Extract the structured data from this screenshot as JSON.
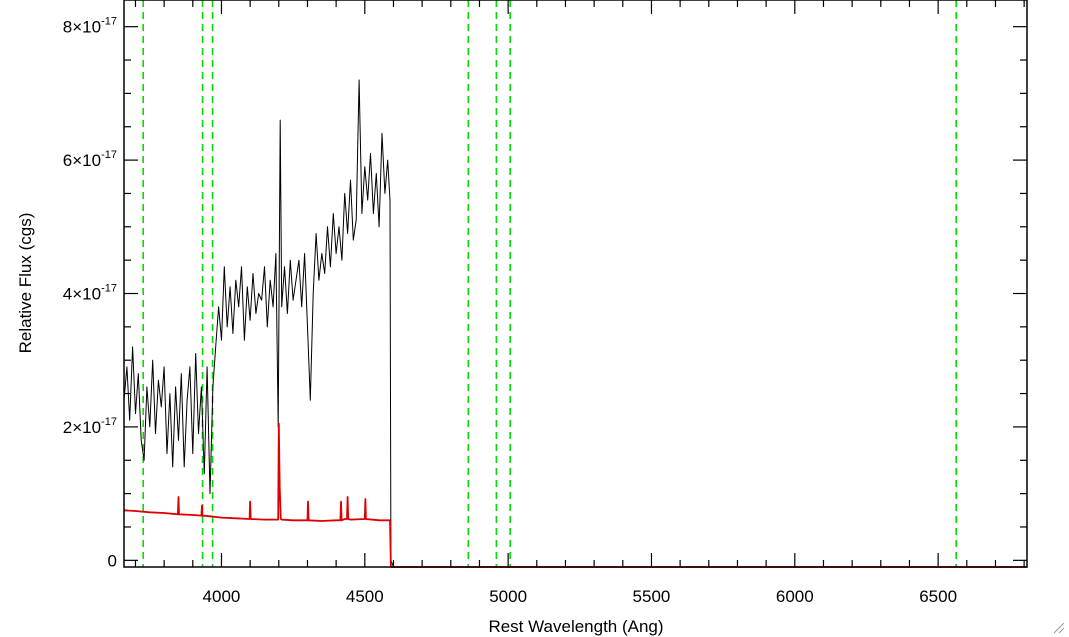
{
  "chart_data": {
    "type": "line",
    "title": "",
    "xlabel": "Rest Wavelength (Ang)",
    "ylabel": "Relative Flux (cgs)",
    "xlim": [
      3660,
      6810
    ],
    "ylim": [
      -1e-18,
      8.4e-17
    ],
    "x_ticks": [
      4000,
      4500,
      5000,
      5500,
      6000,
      6500
    ],
    "x_tick_labels": [
      "4000",
      "4500",
      "5000",
      "5500",
      "6000",
      "6500"
    ],
    "y_ticks": [
      0,
      2e-17,
      4e-17,
      6e-17,
      8e-17
    ],
    "y_tick_labels": [
      {
        "mantissa": "0",
        "exponent": ""
      },
      {
        "mantissa": "2×10",
        "exponent": "-17"
      },
      {
        "mantissa": "4×10",
        "exponent": "-17"
      },
      {
        "mantissa": "6×10",
        "exponent": "-17"
      },
      {
        "mantissa": "8×10",
        "exponent": "-17"
      }
    ],
    "reference_lines_x": [
      3727,
      3934,
      3969,
      4861,
      4959,
      5007,
      6563
    ],
    "reference_line_color": "#00dd00",
    "series": [
      {
        "color": "#000000",
        "x": [
          3660,
          3670,
          3680,
          3690,
          3700,
          3710,
          3720,
          3730,
          3740,
          3750,
          3760,
          3770,
          3780,
          3790,
          3800,
          3810,
          3820,
          3830,
          3840,
          3850,
          3860,
          3870,
          3880,
          3890,
          3900,
          3910,
          3920,
          3930,
          3940,
          3950,
          3960,
          3970,
          3980,
          3990,
          4000,
          4010,
          4020,
          4030,
          4040,
          4050,
          4060,
          4070,
          4080,
          4090,
          4100,
          4110,
          4120,
          4130,
          4140,
          4150,
          4160,
          4170,
          4180,
          4190,
          4198,
          4205,
          4210,
          4220,
          4230,
          4240,
          4250,
          4260,
          4270,
          4280,
          4290,
          4300,
          4310,
          4320,
          4330,
          4340,
          4350,
          4360,
          4370,
          4380,
          4390,
          4400,
          4410,
          4420,
          4430,
          4440,
          4450,
          4460,
          4470,
          4480,
          4490,
          4500,
          4510,
          4520,
          4530,
          4540,
          4550,
          4560,
          4570,
          4580,
          4588,
          4591,
          4600,
          6810
        ],
        "y": [
          2.4e-17,
          2.9e-17,
          2.1e-17,
          3.2e-17,
          2.2e-17,
          2.8e-17,
          1.8e-17,
          1.5e-17,
          2.6e-17,
          2e-17,
          3e-17,
          1.9e-17,
          2.7e-17,
          2.3e-17,
          2.9e-17,
          1.6e-17,
          2.5e-17,
          1.4e-17,
          2.6e-17,
          1.8e-17,
          2.8e-17,
          1.4e-17,
          2.4e-17,
          2.9e-17,
          1.6e-17,
          3.1e-17,
          1.9e-17,
          2.6e-17,
          1.3e-17,
          2.9e-17,
          1e-17,
          2.6e-17,
          3.2e-17,
          3.8e-17,
          3.3e-17,
          4.4e-17,
          3.5e-17,
          4.1e-17,
          3.4e-17,
          4.2e-17,
          3.8e-17,
          4.4e-17,
          3.3e-17,
          4.1e-17,
          3.6e-17,
          4.3e-17,
          3.7e-17,
          4e-17,
          3.9e-17,
          4.4e-17,
          3.5e-17,
          4.2e-17,
          3.8e-17,
          4.6e-17,
          2e-17,
          6.6e-17,
          3.8e-17,
          4.4e-17,
          3.7e-17,
          4.5e-17,
          3.9e-17,
          4.2e-17,
          4.5e-17,
          3.8e-17,
          4.6e-17,
          3.5e-17,
          2.4e-17,
          4e-17,
          4.9e-17,
          4.2e-17,
          4.6e-17,
          4.3e-17,
          5e-17,
          4.4e-17,
          5.2e-17,
          4.6e-17,
          5e-17,
          4.5e-17,
          5.5e-17,
          4.9e-17,
          5.7e-17,
          4.8e-17,
          5.1e-17,
          7.2e-17,
          5.2e-17,
          5.9e-17,
          5.4e-17,
          6.1e-17,
          5.2e-17,
          5.8e-17,
          5e-17,
          6.4e-17,
          5.5e-17,
          6e-17,
          5.4e-17,
          0.0,
          -1e-18,
          -1e-18
        ]
      },
      {
        "color": "#dd0000",
        "x": [
          3660,
          3700,
          3750,
          3800,
          3848,
          3850,
          3852,
          3900,
          3930,
          3932,
          3934,
          3960,
          4000,
          4050,
          4098,
          4100,
          4102,
          4150,
          4198,
          4200,
          4203,
          4207,
          4210,
          4250,
          4300,
          4302,
          4304,
          4350,
          4400,
          4415,
          4417,
          4419,
          4430,
          4438,
          4440,
          4442,
          4450,
          4500,
          4502,
          4504,
          4550,
          4588,
          4591,
          4600,
          6810
        ],
        "y": [
          7.5e-18,
          7.4e-18,
          7.2e-18,
          7.1e-18,
          6.9e-18,
          9.5e-18,
          6.9e-18,
          6.8e-18,
          6.7e-18,
          8.2e-18,
          6.7e-18,
          6.6e-18,
          6.4e-18,
          6.3e-18,
          6.2e-18,
          8.8e-18,
          6.2e-18,
          6.1e-18,
          6.1e-18,
          2.05e-17,
          1.1e-17,
          6.2e-18,
          6.1e-18,
          6e-18,
          6e-18,
          8.8e-18,
          6e-18,
          5.9e-18,
          6e-18,
          6e-18,
          8.8e-18,
          6e-18,
          6.2e-18,
          6.2e-18,
          9.5e-18,
          6.2e-18,
          6.1e-18,
          6.2e-18,
          9.2e-18,
          6.2e-18,
          6e-18,
          6e-18,
          -1e-18,
          -1e-18,
          -1e-18
        ]
      }
    ]
  }
}
